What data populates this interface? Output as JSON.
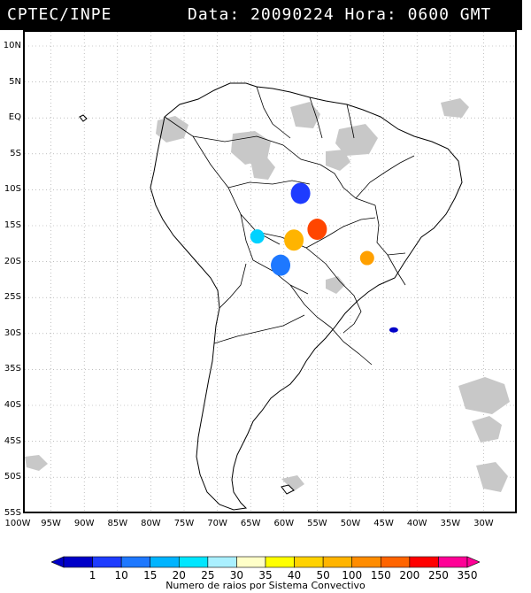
{
  "header": {
    "agency": "CPTEC/INPE",
    "date_time": "Data: 20090224 Hora: 0600 GMT"
  },
  "map": {
    "lat_labels": [
      "10N",
      "5N",
      "EQ",
      "5S",
      "10S",
      "15S",
      "20S",
      "25S",
      "30S",
      "35S",
      "40S",
      "45S",
      "50S",
      "55S"
    ],
    "lat_values": [
      10,
      5,
      0,
      -5,
      -10,
      -15,
      -20,
      -25,
      -30,
      -35,
      -40,
      -45,
      -50,
      -55
    ],
    "lon_labels": [
      "100W",
      "95W",
      "90W",
      "85W",
      "80W",
      "75W",
      "70W",
      "65W",
      "60W",
      "55W",
      "50W",
      "45W",
      "40W",
      "35W",
      "30W"
    ],
    "lon_values": [
      -100,
      -95,
      -90,
      -85,
      -80,
      -75,
      -70,
      -65,
      -60,
      -55,
      -50,
      -45,
      -40,
      -35,
      -30
    ],
    "grid_style": "dotted",
    "cloud_color": "#c8c8c8",
    "convective_systems": [
      {
        "lon": -57.5,
        "lat": -10.5,
        "class": "1",
        "color": "#1e3cff"
      },
      {
        "lon": -55.0,
        "lat": -15.5,
        "class": "250",
        "color": "#ff4600"
      },
      {
        "lon": -58.5,
        "lat": -17.0,
        "class": "50",
        "color": "#ffb400"
      },
      {
        "lon": -60.5,
        "lat": -20.5,
        "class": "10",
        "color": "#1e78ff"
      },
      {
        "lon": -64.0,
        "lat": -16.5,
        "class": "20",
        "color": "#00d2ff"
      },
      {
        "lon": -47.5,
        "lat": -19.5,
        "class": "100",
        "color": "#ffa000"
      },
      {
        "lon": -43.5,
        "lat": -29.5,
        "class": "1",
        "color": "#0000c8"
      }
    ]
  },
  "legend": {
    "values": [
      "1",
      "10",
      "15",
      "20",
      "25",
      "30",
      "35",
      "40",
      "50",
      "100",
      "150",
      "200",
      "250",
      "350"
    ],
    "colors": [
      "#0000c8",
      "#1e3cff",
      "#1e78ff",
      "#00b4ff",
      "#00e6ff",
      "#aaf0ff",
      "#ffffc8",
      "#ffff00",
      "#ffd200",
      "#ffb400",
      "#ff8c00",
      "#ff6400",
      "#ff0000",
      "#ff0096"
    ],
    "caption": "Numero de raios por Sistema Convectivo"
  }
}
